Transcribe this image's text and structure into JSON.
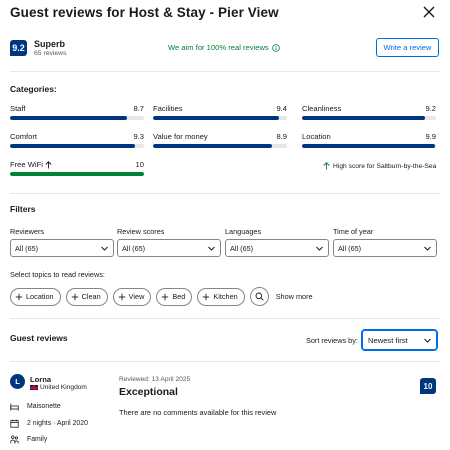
{
  "header": {
    "title": "Guest reviews for Host & Stay - Pier View"
  },
  "summary": {
    "score": "9.2",
    "score_word": "Superb",
    "review_count": "65 reviews",
    "aim_text": "We aim for 100% real reviews",
    "write_review_label": "Write a review"
  },
  "categories": {
    "title": "Categories:",
    "items": [
      {
        "name": "Staff",
        "score": "8.7",
        "value": 8.7
      },
      {
        "name": "Facilities",
        "score": "9.4",
        "value": 9.4
      },
      {
        "name": "Cleanliness",
        "score": "9.2",
        "value": 9.2
      },
      {
        "name": "Comfort",
        "score": "9.3",
        "value": 9.3
      },
      {
        "name": "Value for money",
        "score": "8.9",
        "value": 8.9
      },
      {
        "name": "Location",
        "score": "9.9",
        "value": 9.9
      },
      {
        "name": "Free WiFi",
        "score": "10",
        "value": 10
      }
    ],
    "high_score_text": "High score for Saltburn-by-the-Sea",
    "colors": {
      "fill": "#003580",
      "high_fill": "#008234",
      "track": "#e7e7e7"
    }
  },
  "filters": {
    "title": "Filters",
    "items": [
      {
        "label": "Reviewers",
        "value": "All (65)"
      },
      {
        "label": "Review scores",
        "value": "All (65)"
      },
      {
        "label": "Languages",
        "value": "All (65)"
      },
      {
        "label": "Time of year",
        "value": "All (65)"
      }
    ]
  },
  "topics": {
    "label": "Select topics to read reviews:",
    "chips": [
      "Location",
      "Clean",
      "View",
      "Bed",
      "Kitchen"
    ],
    "show_more": "Show more"
  },
  "guest_reviews": {
    "title": "Guest reviews",
    "sort_label": "Sort reviews by:",
    "sort_value": "Newest first"
  },
  "review": {
    "avatar_initial": "L",
    "name": "Lorna",
    "country": "United Kingdom",
    "room": "Maisonette",
    "stay": "2 nights · April 2020",
    "traveller_type": "Family",
    "reviewed_date": "Reviewed: 13 April 2025",
    "headline": "Exceptional",
    "body": "There are no comments available for this review",
    "score": "10"
  }
}
